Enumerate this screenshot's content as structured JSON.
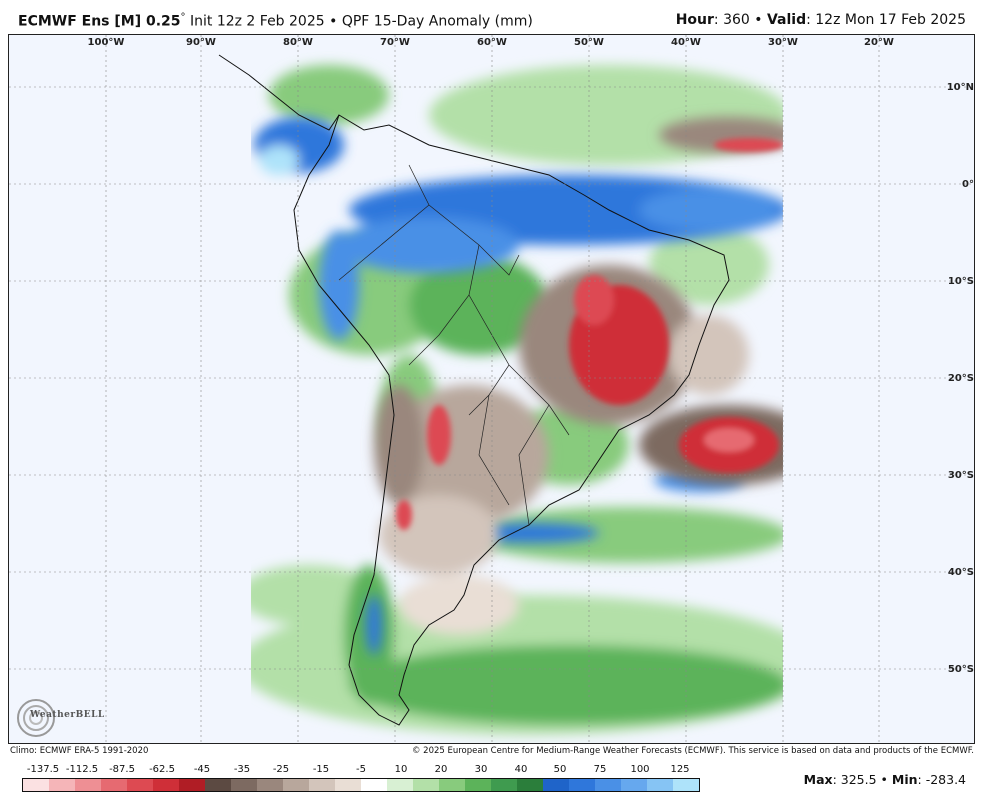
{
  "header": {
    "model": "ECMWF Ens [M] 0.25",
    "degree_symbol": "°",
    "init": "Init 12z 2 Feb 2025",
    "bullet": "•",
    "product": "QPF 15-Day Anomaly (mm)",
    "hour_label": "Hour",
    "hour_value": ": 360 •",
    "valid_label": "Valid",
    "valid_value": ": 12z Mon 17 Feb 2025"
  },
  "map": {
    "longitude_labels": [
      "100°W",
      "90°W",
      "80°W",
      "70°W",
      "60°W",
      "50°W",
      "40°W",
      "30°W",
      "20°W"
    ],
    "latitude_labels": [
      "10°N",
      "0°",
      "10°S",
      "20°S",
      "30°S",
      "40°S",
      "50°S"
    ],
    "colors": {
      "ocean_background": "#f2f6fe",
      "wet_green": "#3f9b4f",
      "wet_blue": "#2f77db",
      "dry_brown": "#a58e7c",
      "dry_red": "#c8232d"
    }
  },
  "logo": {
    "text": "WeatherBELL"
  },
  "footer": {
    "climo": "Climo: ECMWF ERA-5 1991-2020",
    "copyright": "© 2025 European Centre for Medium-Range Weather Forecasts (ECMWF). This service is based on data and products of the ECMWF."
  },
  "colorbar": {
    "labels": [
      "-137.5",
      "-112.5",
      "-87.5",
      "-62.5",
      "-45",
      "-35",
      "-25",
      "-15",
      "-5",
      "10",
      "20",
      "30",
      "40",
      "50",
      "75",
      "100",
      "125"
    ],
    "colors": [
      "#fbe1e2",
      "#f5b5b8",
      "#ee8f94",
      "#e66a71",
      "#dd4a52",
      "#cf2f38",
      "#b01d25",
      "#5c4a42",
      "#7d6a61",
      "#9a877d",
      "#b8a79c",
      "#d3c5bb",
      "#e9ded5",
      "#ffffff",
      "#d8f0d3",
      "#b3e0a8",
      "#88cb7d",
      "#5cb35a",
      "#3f9b4f",
      "#2b7e3b",
      "#1f64c9",
      "#2f77db",
      "#4a90e6",
      "#66a8ee",
      "#86c4f4",
      "#aee3fa"
    ],
    "max_label": "Max",
    "max_value": ": 325.5 •",
    "min_label": "Min",
    "min_value": ": -283.4"
  }
}
